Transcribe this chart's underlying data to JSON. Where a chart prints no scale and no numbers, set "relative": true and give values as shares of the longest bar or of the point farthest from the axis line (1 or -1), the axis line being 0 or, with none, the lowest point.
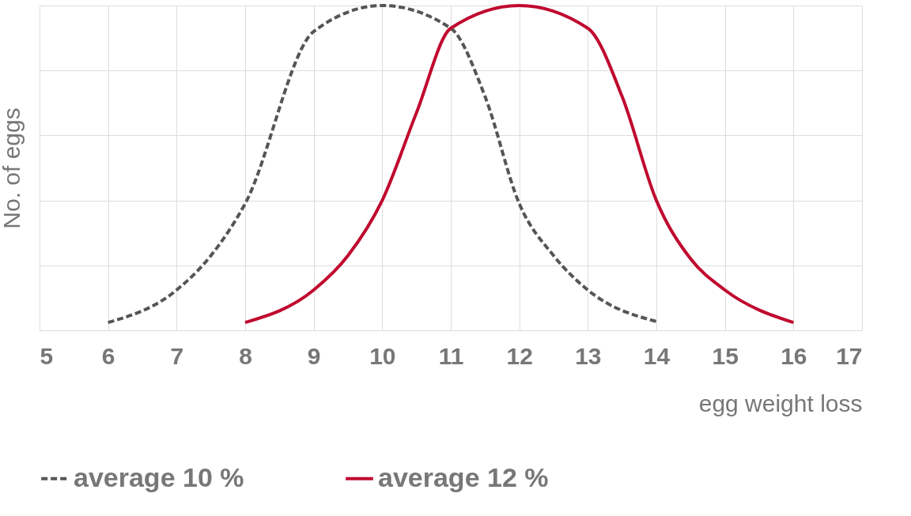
{
  "chart_data": {
    "type": "line",
    "xlabel": "egg weight loss",
    "ylabel": "No. of eggs",
    "relative": true,
    "xlim": [
      5,
      17
    ],
    "xticks": [
      5,
      6,
      7,
      8,
      9,
      10,
      11,
      12,
      13,
      14,
      15,
      16,
      17
    ],
    "grid": true,
    "legend": "bottom",
    "marker": "none",
    "series": [
      {
        "name": "average 10 %",
        "color": "#555555",
        "line_style": "dashed",
        "x": [
          6,
          7,
          7.5,
          8,
          9,
          10,
          11,
          11.5,
          12,
          12.5,
          13,
          14
        ],
        "values": [
          0.024,
          0.124,
          0.23,
          0.39,
          0.92,
          1,
          0.93,
          0.72,
          0.39,
          0.23,
          0.124,
          0.027
        ]
      },
      {
        "name": "average 12 %",
        "color": "#c0092e",
        "line_style": "solid",
        "x": [
          8,
          9,
          9.5,
          10,
          10.5,
          11,
          12,
          13,
          13.5,
          14,
          14.5,
          15,
          16
        ],
        "values": [
          0.024,
          0.124,
          0.23,
          0.4,
          0.67,
          0.93,
          1,
          0.93,
          0.72,
          0.4,
          0.22,
          0.124,
          0.024
        ]
      }
    ]
  }
}
